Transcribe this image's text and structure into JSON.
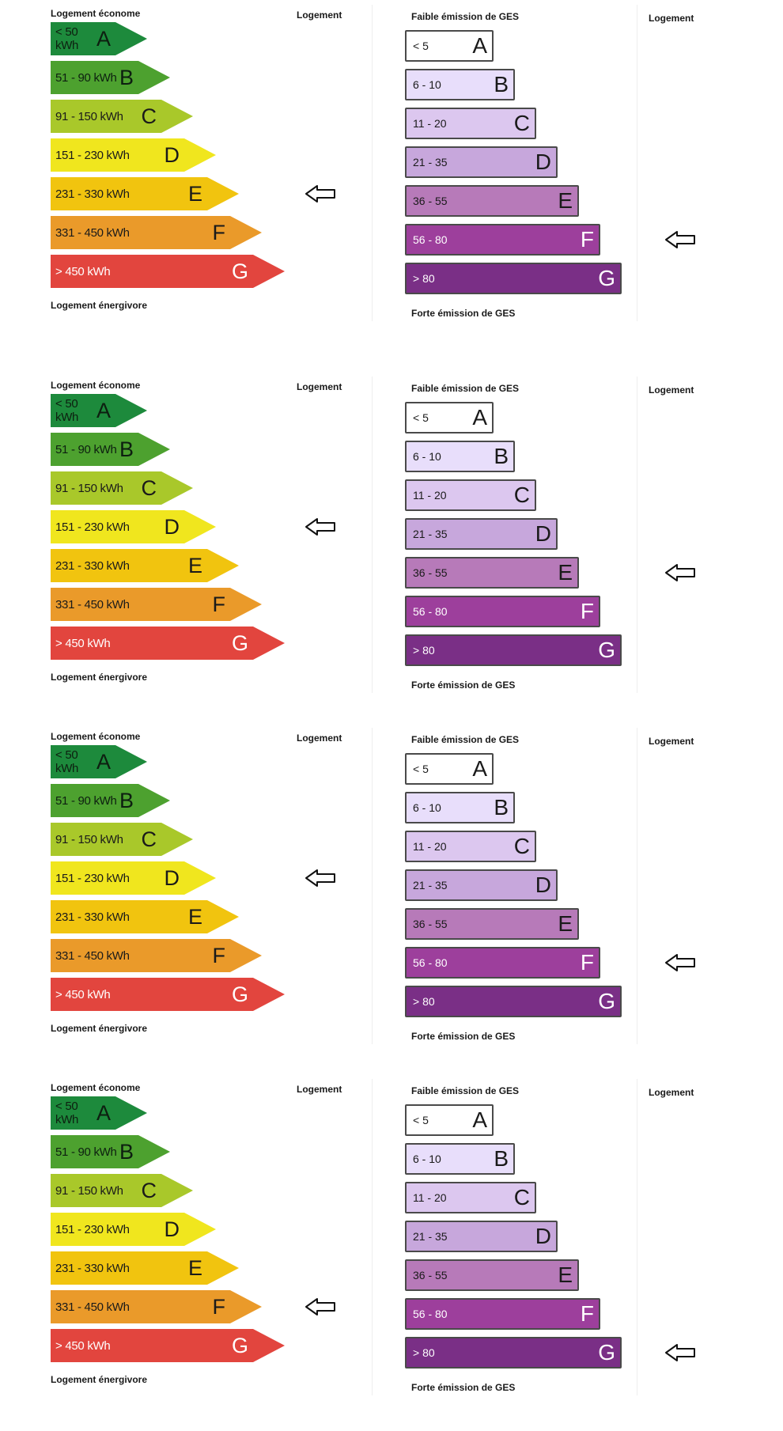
{
  "colors": {
    "energy": [
      "#1d8a3c",
      "#4da12f",
      "#a9c82a",
      "#f0e61e",
      "#f1c40f",
      "#ea9a2a",
      "#e2453e"
    ],
    "ges": [
      "#ffffff",
      "#e8defb",
      "#dcc7ef",
      "#c7a7dc",
      "#b77ab9",
      "#9d3f9c",
      "#7a2f86"
    ]
  },
  "labels": {
    "energy_top": "Logement économe",
    "energy_bottom": "Logement énergivore",
    "ges_top": "Faible émission de GES",
    "ges_bottom": "Forte émission de GES",
    "logement": "Logement"
  },
  "energy_classes": [
    {
      "range": "< 50 kWh",
      "letter": "A"
    },
    {
      "range": "51 - 90 kWh",
      "letter": "B"
    },
    {
      "range": "91 - 150 kWh",
      "letter": "C"
    },
    {
      "range": "151 - 230 kWh",
      "letter": "D"
    },
    {
      "range": "231 - 330 kWh",
      "letter": "E"
    },
    {
      "range": "331 - 450 kWh",
      "letter": "F"
    },
    {
      "range": "> 450 kWh",
      "letter": "G"
    }
  ],
  "ges_classes": [
    {
      "range": "< 5",
      "letter": "A"
    },
    {
      "range": "6 - 10",
      "letter": "B"
    },
    {
      "range": "11 - 20",
      "letter": "C"
    },
    {
      "range": "21 - 35",
      "letter": "D"
    },
    {
      "range": "36 - 55",
      "letter": "E"
    },
    {
      "range": "56 - 80",
      "letter": "F"
    },
    {
      "range": "> 80",
      "letter": "G"
    }
  ],
  "diagnostics": [
    {
      "energy_arrow_class": "E",
      "ges_arrow_class": "F"
    },
    {
      "energy_arrow_class": "D",
      "ges_arrow_class": "E"
    },
    {
      "energy_arrow_class": "D",
      "ges_arrow_class": "F"
    },
    {
      "energy_arrow_class": "F",
      "ges_arrow_class": "G"
    }
  ]
}
